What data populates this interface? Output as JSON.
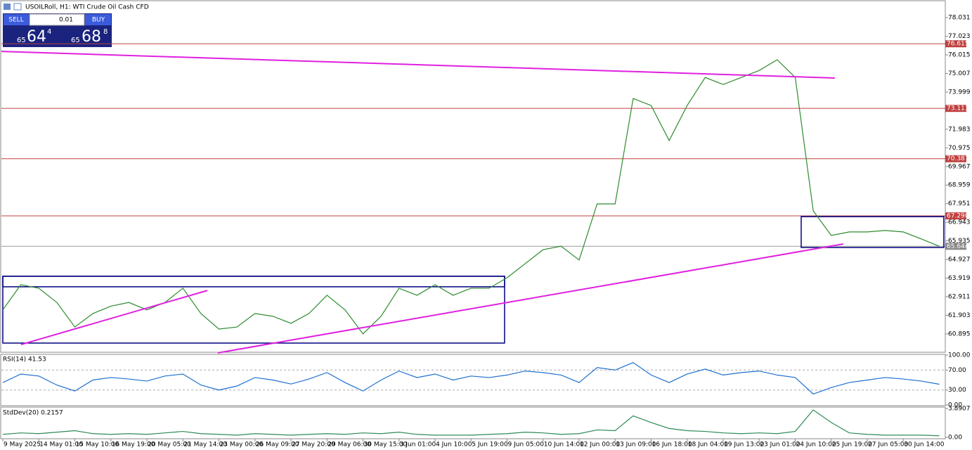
{
  "trade_panel": {
    "sell": "SELL",
    "buy": "BUY",
    "lot": "0.01",
    "sell_price": [
      "65",
      "64",
      "4"
    ],
    "buy_price": [
      "65",
      "68",
      "8"
    ]
  },
  "chart_data": [
    {
      "type": "line",
      "title": "USOILRoll, H1: WTI Crude Oil Cash CFD",
      "color": "#2e8b2e",
      "categories": [
        "9 May 2025",
        null,
        "14 May 01:00",
        null,
        "15 May 10:00",
        null,
        "16 May 19:00",
        null,
        "20 May 05:00",
        null,
        "21 May 14:00",
        null,
        "23 May 00:00",
        null,
        "26 May 09:00",
        null,
        "27 May 20:00",
        null,
        "29 May 06:00",
        null,
        "30 May 15:00",
        null,
        "3 Jun 01:00",
        null,
        "4 Jun 10:00",
        null,
        "5 Jun 19:00",
        null,
        "9 Jun 05:00",
        null,
        "10 Jun 14:00",
        null,
        "12 Jun 00:00",
        null,
        "13 Jun 09:00",
        null,
        "16 Jun 18:00",
        null,
        "18 Jun 04:00",
        null,
        "19 Jun 13:00",
        null,
        "23 Jun 01:00",
        null,
        "24 Jun 10:00",
        null,
        "25 Jun 19:00",
        null,
        "27 Jun 05:00",
        null,
        "30 Jun 14:00",
        null,
        null
      ],
      "values": [
        62.2,
        63.56,
        63.37,
        62.6,
        61.27,
        62.0,
        62.4,
        62.6,
        62.2,
        62.6,
        63.37,
        62.0,
        61.16,
        61.27,
        62.0,
        61.85,
        61.47,
        62.0,
        62.99,
        62.2,
        60.9,
        61.85,
        63.37,
        62.99,
        63.56,
        62.99,
        63.37,
        63.37,
        63.94,
        64.7,
        65.46,
        65.65,
        64.9,
        67.94,
        67.94,
        73.65,
        73.27,
        71.37,
        73.27,
        74.79,
        74.41,
        74.79,
        75.17,
        75.75,
        74.79,
        67.56,
        66.23,
        66.42,
        66.42,
        66.5,
        66.42,
        66.04,
        65.644
      ],
      "ylim": [
        59.94,
        78.91
      ],
      "yticks": [
        78.031,
        77.023,
        76.015,
        75.007,
        73.999,
        71.983,
        70.975,
        69.967,
        68.959,
        67.951,
        66.943,
        65.935,
        64.927,
        63.919,
        62.911,
        61.903,
        60.895
      ],
      "levels": [
        76.615,
        73.113,
        70.387,
        67.29
      ],
      "level_labels": [
        "76.615",
        "73.113",
        "70.387",
        "67.290"
      ],
      "level_color": "#c04040",
      "current_price": 65.644,
      "trendlines": [
        {
          "x": [
            -0.16,
            46.2
          ],
          "y": [
            76.2,
            74.76
          ]
        },
        {
          "x": [
            11.94,
            46.67
          ],
          "y": [
            59.87,
            65.77
          ]
        },
        {
          "x": [
            1.01,
            11.36
          ],
          "y": [
            60.32,
            63.25
          ]
        }
      ],
      "trendline_color": "#e020e0",
      "rectangles": [
        {
          "x": [
            0,
            27.86
          ],
          "y": [
            60.4,
            64.02
          ]
        },
        {
          "x": [
            0,
            27.86
          ],
          "y": [
            63.45,
            64.02
          ]
        },
        {
          "x": [
            44.33,
            52.25
          ],
          "y": [
            65.58,
            67.25
          ]
        }
      ],
      "rectangle_color": "#000080"
    },
    {
      "type": "line",
      "title": "RSI(14) 41.53",
      "color": "#1e6fd0",
      "values": [
        45,
        62,
        58,
        40,
        28,
        50,
        55,
        52,
        48,
        58,
        62,
        40,
        30,
        38,
        55,
        50,
        42,
        52,
        65,
        45,
        28,
        50,
        68,
        55,
        62,
        50,
        58,
        55,
        60,
        68,
        65,
        60,
        45,
        75,
        70,
        85,
        60,
        45,
        62,
        72,
        60,
        65,
        68,
        60,
        55,
        22,
        35,
        45,
        50,
        55,
        52,
        48,
        41.53
      ],
      "ylim": [
        0,
        100
      ],
      "yticks": [
        {
          "value": 100,
          "label": "100.00"
        },
        {
          "value": 70,
          "label": "70.00"
        },
        {
          "value": 30,
          "label": "30.00"
        },
        {
          "value": 0,
          "label": "0.00"
        }
      ]
    },
    {
      "type": "line",
      "title": "StdDev(20) 0.2157",
      "color": "#2e8b57",
      "values": [
        0.4,
        0.6,
        0.5,
        0.7,
        0.9,
        0.5,
        0.4,
        0.5,
        0.4,
        0.6,
        0.8,
        0.5,
        0.4,
        0.3,
        0.5,
        0.4,
        0.3,
        0.4,
        0.5,
        0.4,
        0.6,
        0.5,
        0.7,
        0.4,
        0.3,
        0.3,
        0.3,
        0.4,
        0.5,
        0.7,
        0.6,
        0.4,
        0.5,
        1.0,
        0.9,
        2.9,
        2.0,
        1.2,
        0.9,
        0.8,
        0.6,
        0.5,
        0.6,
        0.5,
        0.8,
        3.7,
        2.0,
        0.6,
        0.4,
        0.3,
        0.3,
        0.3,
        0.2157
      ],
      "ylim": [
        0,
        3.8907
      ],
      "yticks": [
        3.8907,
        {
          "value": 0,
          "label": "0.00"
        }
      ]
    }
  ]
}
